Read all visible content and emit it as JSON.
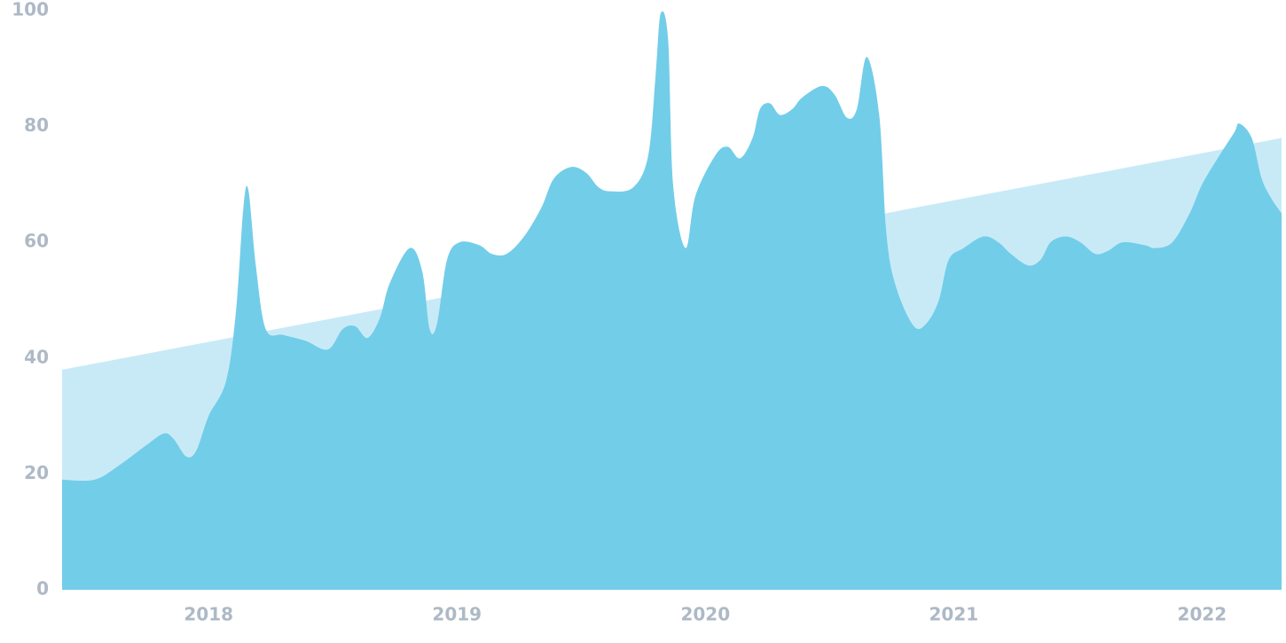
{
  "chart_data": {
    "type": "area",
    "xlim": [
      2017.41,
      2022.32
    ],
    "xticks": [
      2018,
      2019,
      2020,
      2021,
      2022
    ],
    "ylim": [
      0,
      100
    ],
    "yticks": [
      0,
      20,
      40,
      60,
      80,
      100
    ],
    "series": [
      {
        "color": "#c8eaf7",
        "x": [
          2017.41,
          2022.32
        ],
        "values": [
          38,
          78
        ]
      },
      {
        "color": "#72cde9",
        "x": [
          2017.41,
          2017.54,
          2017.64,
          2017.75,
          2017.82,
          2017.86,
          2017.91,
          2017.95,
          2018.0,
          2018.07,
          2018.11,
          2018.14,
          2018.16,
          2018.19,
          2018.23,
          2018.3,
          2018.39,
          2018.48,
          2018.54,
          2018.59,
          2018.64,
          2018.69,
          2018.73,
          2018.81,
          2018.86,
          2018.89,
          2018.92,
          2018.96,
          2019.01,
          2019.09,
          2019.14,
          2019.2,
          2019.27,
          2019.34,
          2019.39,
          2019.46,
          2019.52,
          2019.57,
          2019.62,
          2019.71,
          2019.77,
          2019.8,
          2019.82,
          2019.85,
          2019.87,
          2019.92,
          2019.96,
          2020.04,
          2020.09,
          2020.14,
          2020.19,
          2020.22,
          2020.26,
          2020.3,
          2020.35,
          2020.39,
          2020.47,
          2020.52,
          2020.57,
          2020.61,
          2020.65,
          2020.7,
          2020.73,
          2020.77,
          2020.84,
          2020.89,
          2020.94,
          2020.98,
          2021.04,
          2021.12,
          2021.18,
          2021.23,
          2021.3,
          2021.35,
          2021.39,
          2021.45,
          2021.51,
          2021.57,
          2021.62,
          2021.68,
          2021.77,
          2021.81,
          2021.88,
          2021.95,
          2022.0,
          2022.07,
          2022.13,
          2022.15,
          2022.2,
          2022.24,
          2022.28,
          2022.32
        ],
        "values": [
          19,
          19,
          21.5,
          25,
          27,
          26,
          23,
          24,
          30,
          36,
          48,
          66,
          69,
          56,
          45,
          44,
          43,
          41.5,
          45,
          45.5,
          43.5,
          47,
          53,
          59,
          55,
          45,
          46,
          57,
          60,
          59.5,
          58,
          58,
          61,
          66,
          71,
          73,
          72,
          69.5,
          68.8,
          69.5,
          75,
          89,
          99.5,
          95,
          70,
          59,
          68,
          75,
          76.5,
          74.5,
          78,
          83,
          84,
          82,
          83,
          85,
          87,
          85.5,
          81.5,
          83,
          92,
          82,
          61,
          52,
          45.5,
          46,
          50,
          57,
          59,
          61,
          60,
          58,
          56,
          57,
          60,
          61,
          60,
          58,
          58.5,
          60,
          59.5,
          59,
          60,
          65,
          70,
          75,
          79,
          80.5,
          78,
          71,
          67.5,
          65
        ]
      }
    ]
  }
}
